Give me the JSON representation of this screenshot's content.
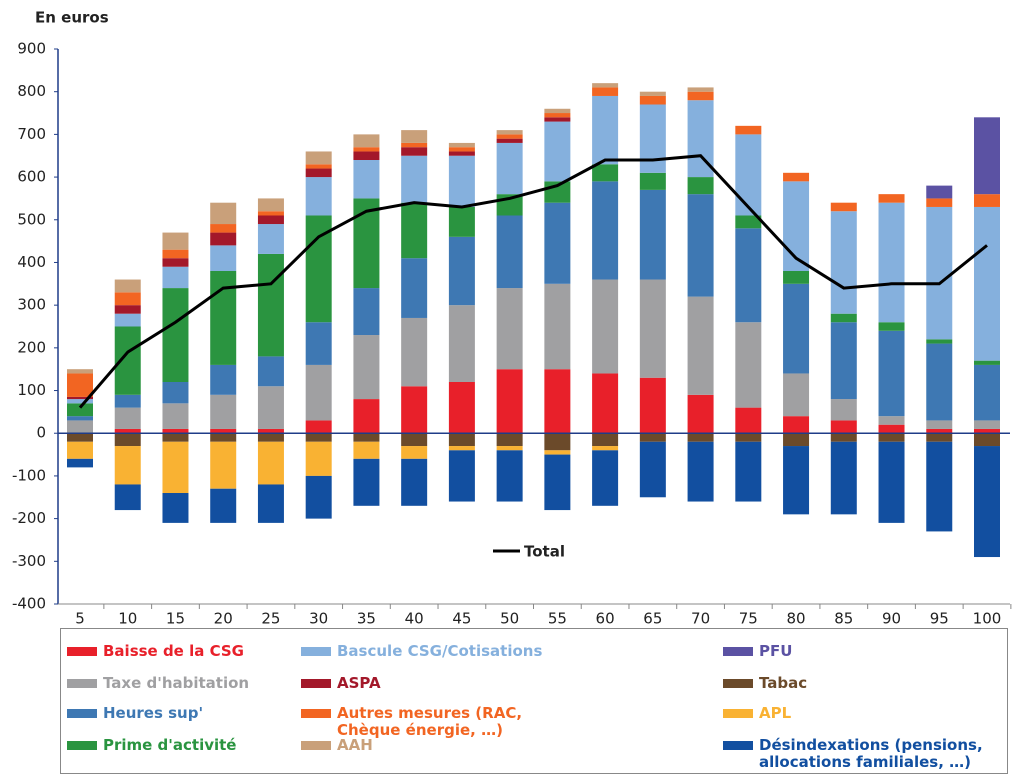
{
  "chart_data": {
    "type": "stacked-bar",
    "y_label": "En euros",
    "categories": [
      5,
      10,
      15,
      20,
      25,
      30,
      35,
      40,
      45,
      50,
      55,
      60,
      65,
      70,
      75,
      80,
      85,
      90,
      95,
      100
    ],
    "ylim": [
      -400,
      900
    ],
    "yticks": [
      -400,
      -300,
      -200,
      -100,
      0,
      100,
      200,
      300,
      400,
      500,
      600,
      700,
      800,
      900
    ],
    "series": [
      {
        "name": "Baisse de la CSG",
        "color": "#e8202a",
        "values": [
          0,
          10,
          10,
          10,
          10,
          30,
          80,
          110,
          120,
          150,
          150,
          140,
          130,
          90,
          60,
          40,
          30,
          20,
          10,
          10
        ]
      },
      {
        "name": "Taxe d'habitation",
        "color": "#a0a0a2",
        "values": [
          30,
          50,
          60,
          80,
          100,
          130,
          150,
          160,
          180,
          190,
          200,
          220,
          230,
          230,
          200,
          100,
          50,
          20,
          20,
          20
        ]
      },
      {
        "name": "Heures sup'",
        "color": "#3e78b3",
        "values": [
          10,
          30,
          50,
          70,
          70,
          100,
          110,
          140,
          160,
          170,
          190,
          230,
          210,
          240,
          220,
          210,
          180,
          200,
          180,
          130
        ]
      },
      {
        "name": "Prime d'activité",
        "color": "#2a9440",
        "values": [
          30,
          160,
          220,
          220,
          240,
          250,
          210,
          130,
          70,
          50,
          50,
          40,
          40,
          40,
          30,
          30,
          20,
          20,
          10,
          10
        ]
      },
      {
        "name": "Bascule CSG/Cotisations",
        "color": "#85b0dd",
        "values": [
          10,
          30,
          50,
          60,
          70,
          90,
          90,
          110,
          120,
          120,
          140,
          160,
          160,
          180,
          190,
          210,
          240,
          280,
          310,
          360
        ]
      },
      {
        "name": "ASPA",
        "color": "#a3182a",
        "values": [
          5,
          20,
          20,
          30,
          20,
          20,
          20,
          20,
          10,
          10,
          10,
          0,
          0,
          0,
          0,
          0,
          0,
          0,
          0,
          0
        ]
      },
      {
        "name": "Autres mesures (RAC, Chèque énergie, …)",
        "color": "#f26522",
        "values": [
          55,
          30,
          20,
          20,
          10,
          10,
          10,
          10,
          10,
          10,
          10,
          20,
          20,
          20,
          20,
          20,
          20,
          20,
          20,
          30
        ]
      },
      {
        "name": "AAH",
        "color": "#c9a07a",
        "values": [
          10,
          30,
          40,
          50,
          30,
          30,
          30,
          30,
          10,
          10,
          10,
          10,
          10,
          10,
          0,
          0,
          0,
          0,
          0,
          0
        ]
      },
      {
        "name": "PFU",
        "color": "#5b52a3",
        "values": [
          0,
          0,
          0,
          0,
          0,
          0,
          0,
          0,
          0,
          0,
          0,
          0,
          0,
          0,
          0,
          0,
          0,
          0,
          30,
          180
        ]
      },
      {
        "name": "Tabac",
        "color": "#6b4a2a",
        "values": [
          -20,
          -30,
          -20,
          -20,
          -20,
          -20,
          -20,
          -30,
          -30,
          -30,
          -40,
          -30,
          -20,
          -20,
          -20,
          -30,
          -20,
          -20,
          -20,
          -30
        ]
      },
      {
        "name": "APL",
        "color": "#f9b233",
        "values": [
          -40,
          -90,
          -120,
          -110,
          -100,
          -80,
          -40,
          -30,
          -10,
          -10,
          -10,
          -10,
          0,
          0,
          0,
          0,
          0,
          0,
          0,
          0
        ]
      },
      {
        "name": "Désindexations (pensions, allocations familiales, …)",
        "color": "#124fa0",
        "values": [
          -20,
          -60,
          -70,
          -80,
          -90,
          -100,
          -110,
          -110,
          -120,
          -120,
          -130,
          -130,
          -130,
          -140,
          -140,
          -160,
          -170,
          -190,
          -210,
          -260
        ]
      }
    ],
    "line": {
      "name": "Total",
      "color": "#000000",
      "values": [
        60,
        190,
        260,
        340,
        350,
        460,
        520,
        540,
        530,
        550,
        580,
        640,
        640,
        650,
        530,
        410,
        340,
        350,
        350,
        440
      ]
    }
  }
}
